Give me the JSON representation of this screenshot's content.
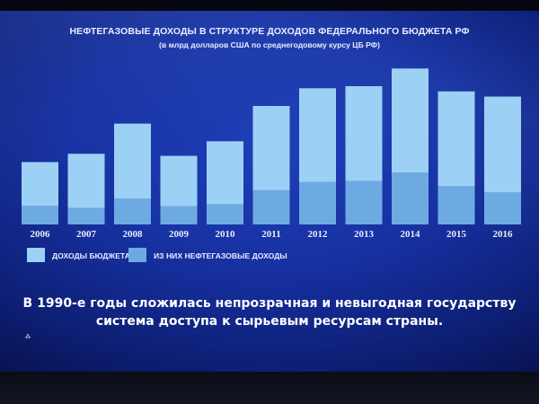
{
  "chart_data": {
    "type": "bar",
    "title": "НЕФТЕГАЗОВЫЕ ДОХОДЫ В СТРУКТУРЕ ДОХОДОВ ФЕДЕРАЛЬНОГО БЮДЖЕТА РФ",
    "subtitle": "(в млрд долларов США по среднегодовому курсу ЦБ РФ)",
    "stacked": false,
    "overlaid": true,
    "categories": [
      "2006",
      "2007",
      "2008",
      "2009",
      "2010",
      "2011",
      "2012",
      "2013",
      "2014",
      "2015",
      "2016"
    ],
    "series": [
      {
        "name": "ДОХОДЫ БЮДЖЕТА",
        "color": "#9dd0f5",
        "values": [
          300,
          340,
          485,
          330,
          400,
          570,
          655,
          665,
          750,
          640,
          615
        ]
      },
      {
        "name": "ИЗ НИХ НЕФТЕГАЗОВЫЕ ДОХОДЫ",
        "color": "#6eaae2",
        "values": [
          90,
          80,
          125,
          88,
          98,
          165,
          205,
          210,
          250,
          185,
          155
        ]
      }
    ],
    "ylim": [
      0,
      760
    ],
    "grid": false,
    "legend_position": "bottom-left",
    "xlabel": "",
    "ylabel": ""
  },
  "caption_lines": [
    "В 1990-е годы сложилась непрозрачная и невыгодная государству",
    "система доступа к сырьевым ресурсам страны."
  ],
  "spark_glyph": "⁂"
}
